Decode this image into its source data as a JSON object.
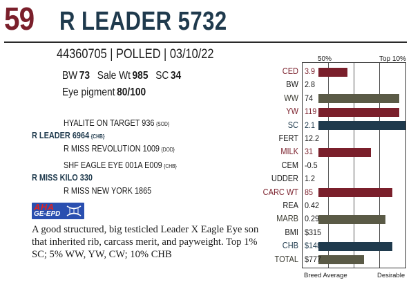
{
  "header": {
    "lot": "59",
    "name": "R LEADER 5732"
  },
  "registration": "44360705 | POLLED | 03/10/22",
  "stats": {
    "bw_label": "BW",
    "bw": "73",
    "sale_wt_label": "Sale Wt",
    "sale_wt": "985",
    "sc_label": "SC",
    "sc": "34"
  },
  "eye_pigment": {
    "label": "Eye pigment",
    "value": "80/100"
  },
  "pedigree": [
    {
      "name": "HYALITE ON TARGET 936",
      "tag": "{SOD}"
    },
    {
      "name": "R LEADER 6964",
      "tag": "{CHB}"
    },
    {
      "name": "R MISS REVOLUTION 1009",
      "tag": "{DOD}"
    },
    {
      "name": "SHF EAGLE EYE 001A E009",
      "tag": "{CHB}"
    },
    {
      "name": "R MISS KILO 330",
      "tag": ""
    },
    {
      "name": "R MISS NEW YORK 1865",
      "tag": ""
    }
  ],
  "logo": {
    "line1": "AHA",
    "line2": "GE-EPD"
  },
  "description": "A good structured, big testicled Leader X Eagle Eye son that inherited rib, carcass merit, and payweight. Top 1% SC; 5% WW, YW, CW; 10% CHB",
  "chart_data": {
    "type": "bar",
    "header_left": "50%",
    "header_right": "Top 10%",
    "footer_left": "Breed Average",
    "footer_right": "Desirable",
    "scale": "percentile rank, 0 = breed average, 1 = right edge",
    "rows": [
      {
        "trait": "CED",
        "value": "3.9",
        "fill": 0.33,
        "color": "#7a1f2b"
      },
      {
        "trait": "BW",
        "value": "2.8",
        "fill": 0,
        "color": ""
      },
      {
        "trait": "WW",
        "value": "74",
        "fill": 0.93,
        "color": "#5a5a46"
      },
      {
        "trait": "YW",
        "value": "119",
        "fill": 0.93,
        "color": "#7a1f2b"
      },
      {
        "trait": "SC",
        "value": "2.1",
        "fill": 1.0,
        "color": "#1f3a4d"
      },
      {
        "trait": "FERT",
        "value": "12.2",
        "fill": 0,
        "color": ""
      },
      {
        "trait": "MILK",
        "value": "31",
        "fill": 0.6,
        "color": "#7a1f2b"
      },
      {
        "trait": "CEM",
        "value": "-0.5",
        "fill": 0,
        "color": ""
      },
      {
        "trait": "UDDER",
        "value": "1.2",
        "fill": 0,
        "color": ""
      },
      {
        "trait": "CARC WT",
        "value": "85",
        "fill": 0.85,
        "color": "#7a1f2b"
      },
      {
        "trait": "REA",
        "value": "0.42",
        "fill": 0,
        "color": ""
      },
      {
        "trait": "MARB",
        "value": "0.29",
        "fill": 0.77,
        "color": "#5a5a46"
      },
      {
        "trait": "BMI",
        "value": "$315",
        "fill": 0,
        "color": ""
      },
      {
        "trait": "CHB",
        "value": "$148",
        "fill": 0.85,
        "color": "#1f3a4d"
      },
      {
        "trait": "TOTAL",
        "value": "$777",
        "fill": 0.52,
        "color": "#5a5a46"
      }
    ]
  }
}
